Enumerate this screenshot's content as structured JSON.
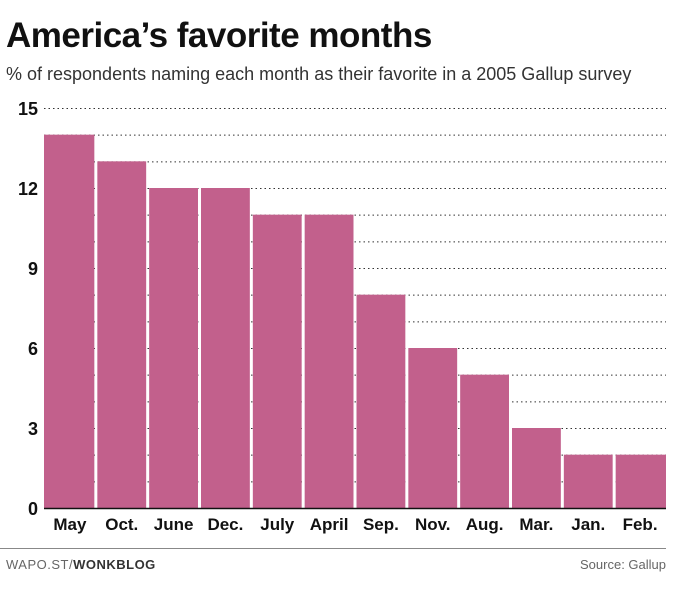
{
  "header": {
    "title": "America’s favorite months",
    "subtitle": "% of respondents naming each month as their favorite in a 2005 Gallup survey"
  },
  "footer": {
    "prefix": "WAPO.ST/",
    "brand": "WONKBLOG",
    "source": "Source: Gallup"
  },
  "colors": {
    "bar": "#c2608c",
    "grid": "#333333",
    "axis": "#111111"
  },
  "chart_data": {
    "type": "bar",
    "title": "America’s favorite months",
    "subtitle": "% of respondents naming each month as their favorite in a 2005 Gallup survey",
    "categories": [
      "May",
      "Oct.",
      "June",
      "Dec.",
      "July",
      "April",
      "Sep.",
      "Nov.",
      "Aug.",
      "Mar.",
      "Jan.",
      "Feb."
    ],
    "values": [
      14,
      13,
      12,
      12,
      11,
      11,
      8,
      6,
      5,
      3,
      2,
      2
    ],
    "xlabel": "",
    "ylabel": "",
    "ylim": [
      0,
      15
    ],
    "yticks": [
      0,
      3,
      6,
      9,
      12,
      15
    ],
    "grid": "dotted horizontal every 1 unit"
  }
}
